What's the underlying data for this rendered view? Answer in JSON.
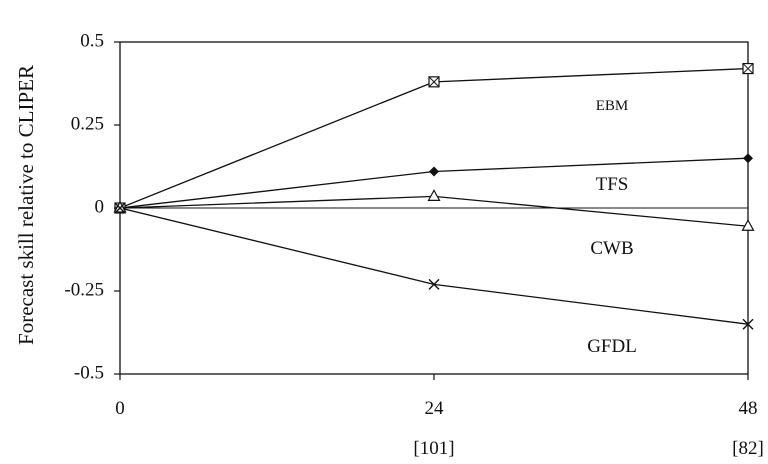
{
  "chart_data": {
    "type": "line",
    "title": "",
    "xlabel": "",
    "ylabel": "Forecast skill relative to CLIPER",
    "x": [
      0,
      24,
      48
    ],
    "x_tick_labels": [
      "0",
      "24",
      "48"
    ],
    "x_sub_labels": [
      "",
      "[101]",
      "[82]"
    ],
    "ylim": [
      -0.5,
      0.5
    ],
    "y_ticks": [
      -0.5,
      -0.25,
      0,
      0.25,
      0.5
    ],
    "y_tick_labels": [
      "-0.5",
      "-0.25",
      "0",
      "0.25",
      "0.5"
    ],
    "zero_line": true,
    "grid": false,
    "series": [
      {
        "name": "EBM",
        "marker": "square-x",
        "values": [
          0,
          0.38,
          0.42
        ]
      },
      {
        "name": "TFS",
        "marker": "diamond",
        "values": [
          0,
          0.11,
          0.15
        ]
      },
      {
        "name": "CWB",
        "marker": "triangle",
        "values": [
          0,
          0.035,
          -0.055
        ]
      },
      {
        "name": "GFDL",
        "marker": "x",
        "values": [
          0,
          -0.23,
          -0.35
        ]
      }
    ]
  }
}
